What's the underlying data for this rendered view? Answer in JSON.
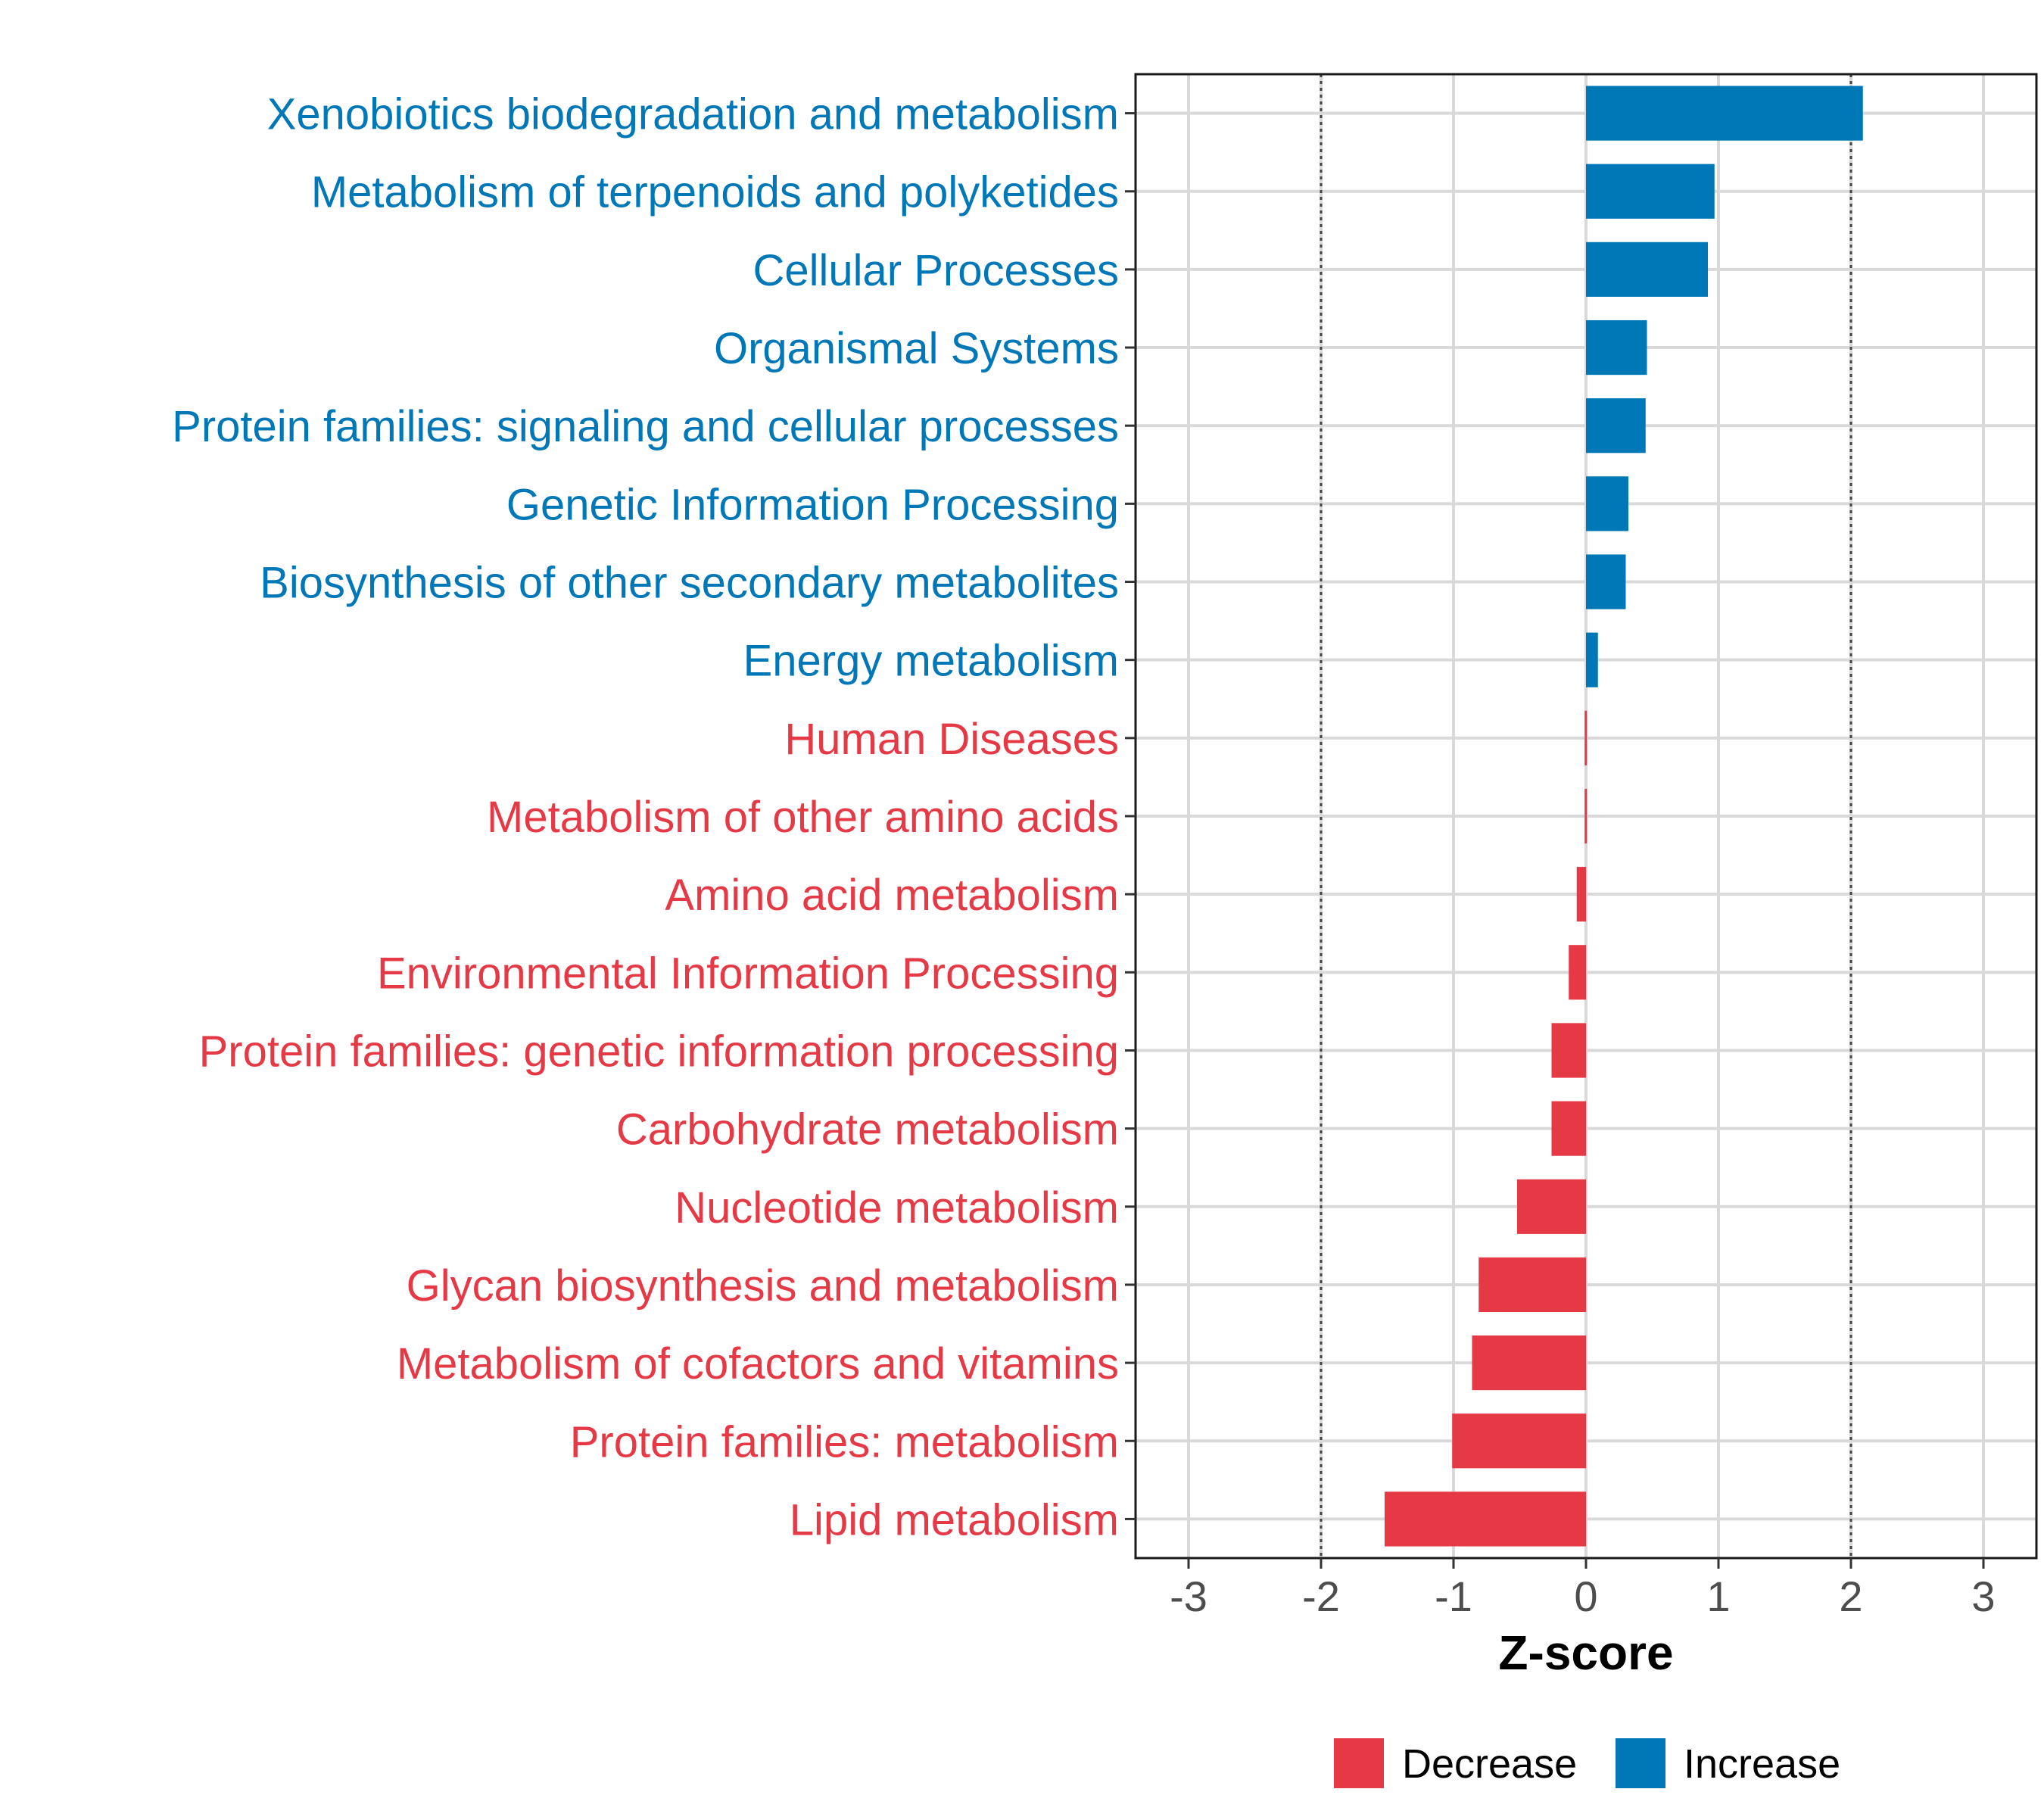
{
  "chart_data": {
    "type": "bar",
    "orientation": "horizontal",
    "xlabel": "Z-score",
    "ylabel": "",
    "xlim": [
      -3.4,
      3.4
    ],
    "x_ticks": [
      -3,
      -2,
      -1,
      0,
      1,
      2,
      3
    ],
    "x_tick_labels": [
      "-3",
      "-2",
      "-1",
      "0",
      "1",
      "2",
      "3"
    ],
    "reference_lines": [
      -2,
      2
    ],
    "grid": true,
    "colors": {
      "Decrease": "#E63946",
      "Increase": "#0077B6"
    },
    "legend": {
      "placement": "bottom",
      "entries": [
        "Decrease",
        "Increase"
      ]
    },
    "categories": [
      "Xenobiotics biodegradation and metabolism",
      "Metabolism of terpenoids and polyketides",
      "Cellular Processes",
      "Organismal Systems",
      "Protein families: signaling and cellular processes",
      "Genetic Information Processing",
      "Biosynthesis of other secondary metabolites",
      "Energy metabolism",
      "Human Diseases",
      "Metabolism of other amino acids",
      "Amino acid metabolism",
      "Environmental Information Processing",
      "Protein families: genetic information processing",
      "Carbohydrate metabolism",
      "Nucleotide metabolism",
      "Glycan biosynthesis and metabolism",
      "Metabolism of cofactors and vitamins",
      "Protein families: metabolism",
      "Lipid metabolism"
    ],
    "values": [
      2.09,
      0.97,
      0.92,
      0.46,
      0.45,
      0.32,
      0.3,
      0.09,
      -0.01,
      -0.01,
      -0.07,
      -0.13,
      -0.26,
      -0.26,
      -0.52,
      -0.81,
      -0.86,
      -1.01,
      -1.52
    ],
    "groups": [
      "Increase",
      "Increase",
      "Increase",
      "Increase",
      "Increase",
      "Increase",
      "Increase",
      "Increase",
      "Decrease",
      "Decrease",
      "Decrease",
      "Decrease",
      "Decrease",
      "Decrease",
      "Decrease",
      "Decrease",
      "Decrease",
      "Decrease",
      "Decrease"
    ]
  }
}
